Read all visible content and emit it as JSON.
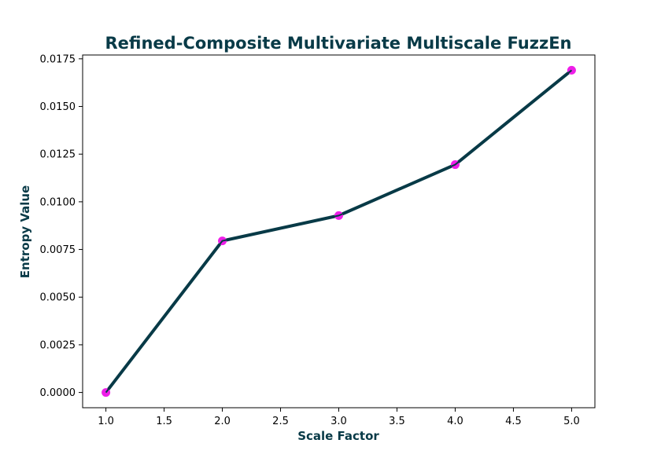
{
  "chart_data": {
    "type": "line",
    "title": "Refined-Composite Multivariate Multiscale FuzzEn",
    "xlabel": "Scale Factor",
    "ylabel": "Entropy Value",
    "xlim": [
      0.8,
      5.2
    ],
    "ylim": [
      -0.0008,
      0.0177
    ],
    "xticks": [
      "1.0",
      "1.5",
      "2.0",
      "2.5",
      "3.0",
      "3.5",
      "4.0",
      "4.5",
      "5.0"
    ],
    "yticks": [
      "0.0000",
      "0.0025",
      "0.0050",
      "0.0075",
      "0.0100",
      "0.0125",
      "0.0150",
      "0.0175"
    ],
    "grid": false,
    "x": [
      1,
      2,
      3,
      4,
      5
    ],
    "series": [
      {
        "values": [
          0.0,
          0.00795,
          0.00928,
          0.01195,
          0.0169
        ]
      }
    ],
    "colors": {
      "line": "#083a47",
      "marker": "#ee1ee8",
      "text": "#083a47"
    }
  }
}
